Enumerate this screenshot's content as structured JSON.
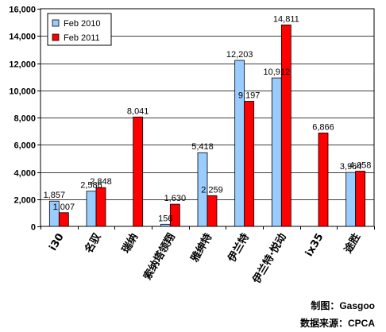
{
  "chart_data": {
    "type": "bar",
    "categories": [
      "i30",
      "名驭",
      "瑞纳",
      "索纳塔领翔",
      "雅绅特",
      "伊兰特",
      "伊兰特·悦动",
      "ix35",
      "途胜"
    ],
    "series": [
      {
        "name": "Feb 2010",
        "values": [
          1857,
          2586,
          null,
          156,
          5418,
          12203,
          10912,
          null,
          3964
        ]
      },
      {
        "name": "Feb 2011",
        "values": [
          1007,
          2848,
          8041,
          1630,
          2259,
          9197,
          14811,
          6866,
          4058
        ]
      }
    ],
    "data_labels": [
      [
        "1,857",
        "2,586",
        null,
        "156",
        "5,418",
        "12,203",
        "10,912",
        null,
        "3,964"
      ],
      [
        "1,007",
        "2,848",
        "8,041",
        "1,630",
        "2,259",
        "9,197",
        "14,811",
        "6,866",
        "4,058"
      ]
    ],
    "ylim": [
      0,
      16000
    ],
    "yticks": [
      0,
      2000,
      4000,
      6000,
      8000,
      10000,
      12000,
      14000,
      16000
    ],
    "ytick_labels": [
      "0",
      "2,000",
      "4,000",
      "6,000",
      "8,000",
      "10,000",
      "12,000",
      "14,000",
      "16,000"
    ],
    "grid": true,
    "legend_position": "top-left",
    "colors": {
      "series1": "#99CCFF",
      "series2": "#FF0000",
      "border": "#000000"
    }
  },
  "notes": {
    "made_by": "制图：Gasgoo",
    "source": "数据来源：CPCA"
  }
}
